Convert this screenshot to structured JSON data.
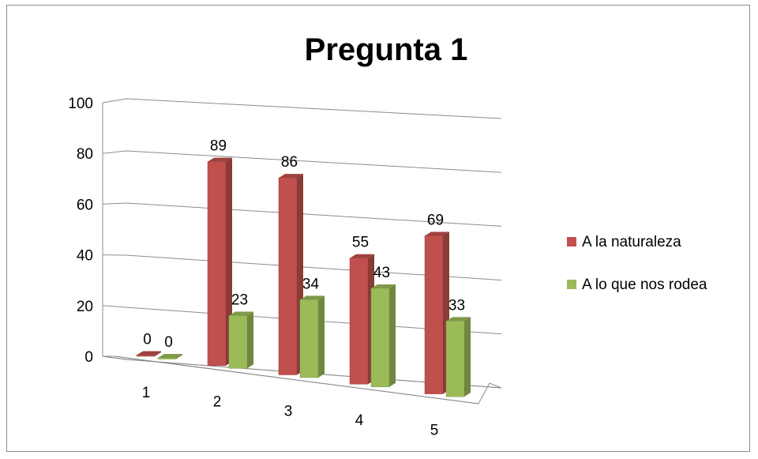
{
  "chart_data": {
    "type": "bar",
    "title": "Pregunta 1",
    "categories": [
      "1",
      "2",
      "3",
      "4",
      "5"
    ],
    "series": [
      {
        "name": "A la naturaleza",
        "values": [
          0,
          89,
          86,
          55,
          69
        ],
        "color": "#c0504d"
      },
      {
        "name": "A lo que nos rodea",
        "values": [
          0,
          23,
          34,
          43,
          33
        ],
        "color": "#9bbb59"
      }
    ],
    "ylim": [
      0,
      100
    ],
    "yticks": [
      0,
      20,
      40,
      60,
      80,
      100
    ],
    "grid": true,
    "perspective": "3d",
    "legend_position": "right"
  }
}
